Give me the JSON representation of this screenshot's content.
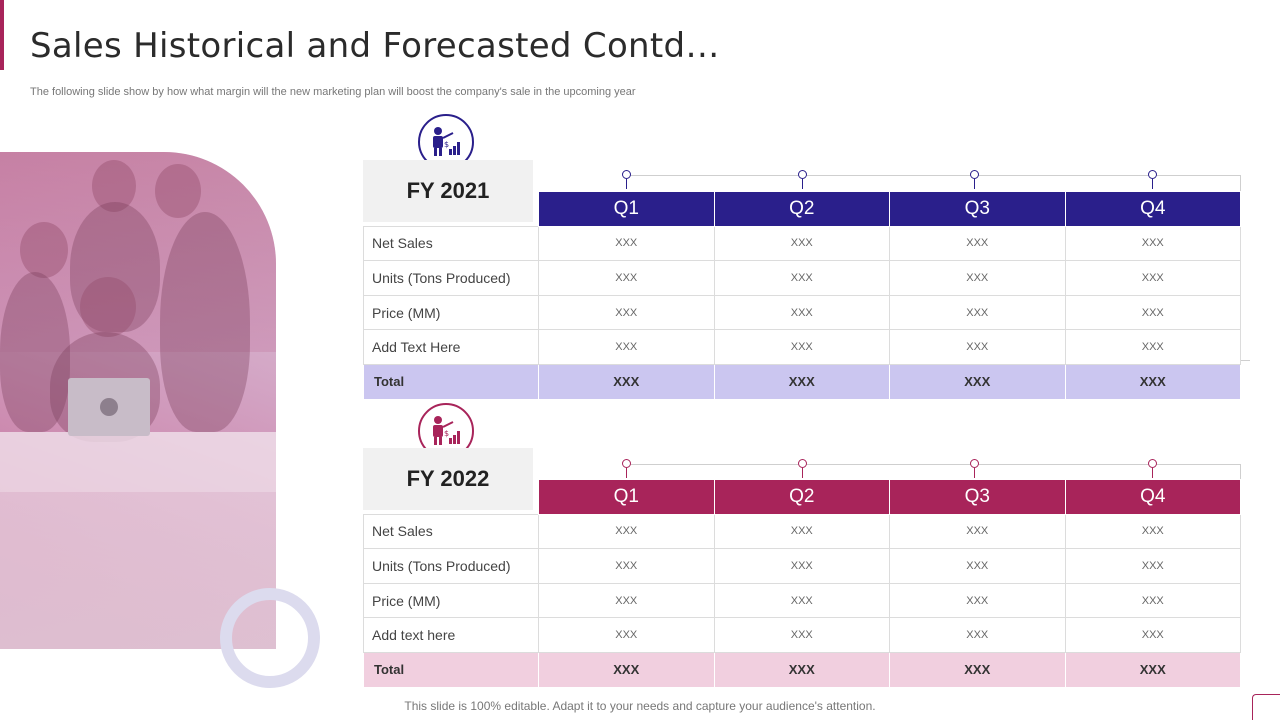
{
  "header": {
    "title": "Sales Historical and Forecasted Contd…",
    "subtitle": "The following slide show by how what margin will the new marketing plan will boost the company's sale in the upcoming year"
  },
  "colors": {
    "fy2021_accent": "#2a1f8b",
    "fy2021_total_bg": "#cbc6f0",
    "fy2022_accent": "#a8245a",
    "fy2022_total_bg": "#f1cfdf"
  },
  "icons": {
    "section_emblem": "presenter-chart-icon"
  },
  "tables": [
    {
      "year": "FY 2021",
      "quarters": [
        "Q1",
        "Q2",
        "Q3",
        "Q4"
      ],
      "rows": [
        {
          "label": "Net Sales",
          "values": [
            "XXX",
            "XXX",
            "XXX",
            "XXX"
          ]
        },
        {
          "label": "Units (Tons Produced)",
          "values": [
            "XXX",
            "XXX",
            "XXX",
            "XXX"
          ]
        },
        {
          "label": "Price (MM)",
          "values": [
            "XXX",
            "XXX",
            "XXX",
            "XXX"
          ]
        },
        {
          "label": "Add Text Here",
          "values": [
            "XXX",
            "XXX",
            "XXX",
            "XXX"
          ]
        }
      ],
      "total": {
        "label": "Total",
        "values": [
          "XXX",
          "XXX",
          "XXX",
          "XXX"
        ]
      }
    },
    {
      "year": "FY 2022",
      "quarters": [
        "Q1",
        "Q2",
        "Q3",
        "Q4"
      ],
      "rows": [
        {
          "label": "Net Sales",
          "values": [
            "XXX",
            "XXX",
            "XXX",
            "XXX"
          ]
        },
        {
          "label": "Units (Tons Produced)",
          "values": [
            "XXX",
            "XXX",
            "XXX",
            "XXX"
          ]
        },
        {
          "label": "Price (MM)",
          "values": [
            "XXX",
            "XXX",
            "XXX",
            "XXX"
          ]
        },
        {
          "label": "Add text here",
          "values": [
            "XXX",
            "XXX",
            "XXX",
            "XXX"
          ]
        }
      ],
      "total": {
        "label": "Total",
        "values": [
          "XXX",
          "XXX",
          "XXX",
          "XXX"
        ]
      }
    }
  ],
  "footer": {
    "note": "This slide is 100% editable. Adapt it to your needs and capture your audience's attention."
  }
}
